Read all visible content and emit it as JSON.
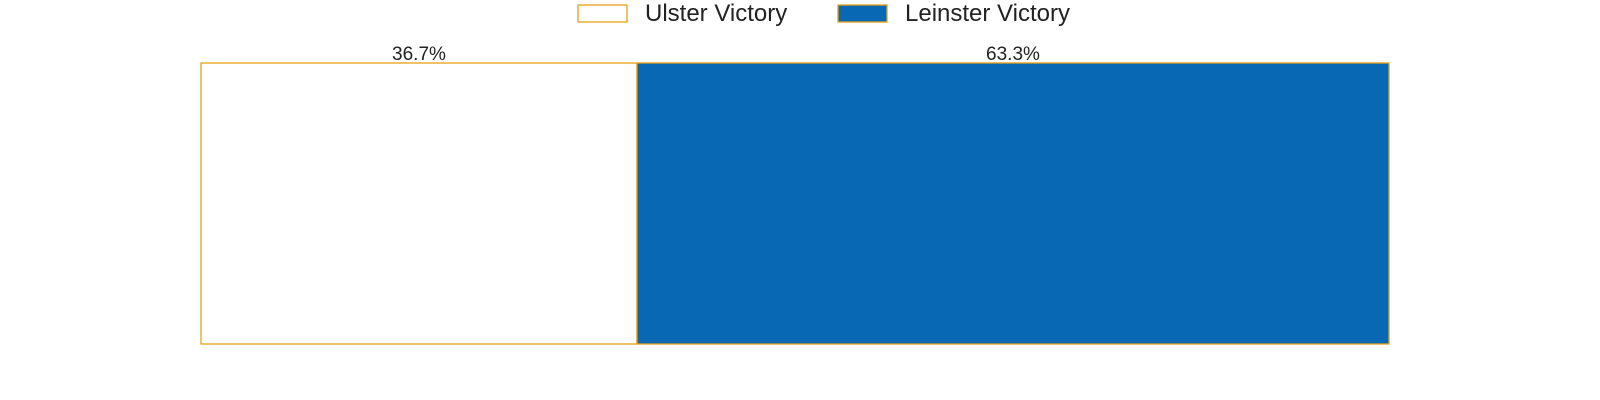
{
  "chart_data": {
    "type": "bar",
    "orientation": "horizontal-stacked",
    "categories": [
      ""
    ],
    "series": [
      {
        "name": "Ulster Victory",
        "values": [
          36.7
        ],
        "label": "36.7%",
        "fill": "#ffffff",
        "stroke": "#e6a117"
      },
      {
        "name": "Leinster Victory",
        "values": [
          63.3
        ],
        "label": "63.3%",
        "fill": "#0868b3",
        "stroke": "#e6a117"
      }
    ],
    "xlim": [
      0,
      100
    ],
    "legend": "top-center",
    "grid": false,
    "axes_visible": false
  }
}
